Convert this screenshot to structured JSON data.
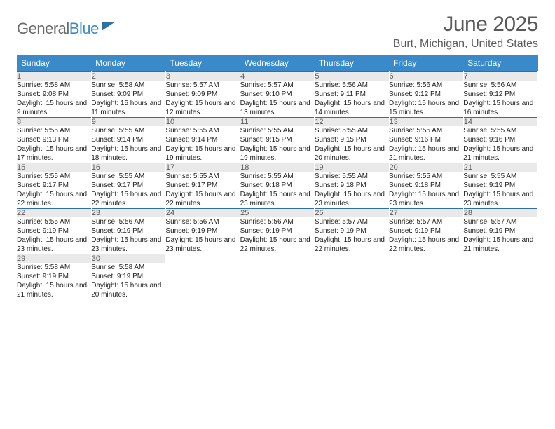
{
  "brand": {
    "word1": "General",
    "word2": "Blue"
  },
  "title": {
    "month": "June 2025",
    "location": "Burt, Michigan, United States"
  },
  "style": {
    "header_bg": "#3a8ac9",
    "header_fg": "#ffffff",
    "daynum_bg": "#e9e9e9",
    "daynum_fg": "#5a5a5a",
    "row_border": "#2d6fa8",
    "body_fg": "#222222",
    "month_fontsize": 30,
    "location_fontsize": 16,
    "header_fontsize": 12,
    "daynum_fontsize": 11,
    "cell_fontsize": 10
  },
  "weekdays": [
    "Sunday",
    "Monday",
    "Tuesday",
    "Wednesday",
    "Thursday",
    "Friday",
    "Saturday"
  ],
  "days": [
    {
      "n": "1",
      "sr": "5:58 AM",
      "ss": "9:08 PM",
      "dl": "15 hours and 9 minutes."
    },
    {
      "n": "2",
      "sr": "5:58 AM",
      "ss": "9:09 PM",
      "dl": "15 hours and 11 minutes."
    },
    {
      "n": "3",
      "sr": "5:57 AM",
      "ss": "9:09 PM",
      "dl": "15 hours and 12 minutes."
    },
    {
      "n": "4",
      "sr": "5:57 AM",
      "ss": "9:10 PM",
      "dl": "15 hours and 13 minutes."
    },
    {
      "n": "5",
      "sr": "5:56 AM",
      "ss": "9:11 PM",
      "dl": "15 hours and 14 minutes."
    },
    {
      "n": "6",
      "sr": "5:56 AM",
      "ss": "9:12 PM",
      "dl": "15 hours and 15 minutes."
    },
    {
      "n": "7",
      "sr": "5:56 AM",
      "ss": "9:12 PM",
      "dl": "15 hours and 16 minutes."
    },
    {
      "n": "8",
      "sr": "5:55 AM",
      "ss": "9:13 PM",
      "dl": "15 hours and 17 minutes."
    },
    {
      "n": "9",
      "sr": "5:55 AM",
      "ss": "9:14 PM",
      "dl": "15 hours and 18 minutes."
    },
    {
      "n": "10",
      "sr": "5:55 AM",
      "ss": "9:14 PM",
      "dl": "15 hours and 19 minutes."
    },
    {
      "n": "11",
      "sr": "5:55 AM",
      "ss": "9:15 PM",
      "dl": "15 hours and 19 minutes."
    },
    {
      "n": "12",
      "sr": "5:55 AM",
      "ss": "9:15 PM",
      "dl": "15 hours and 20 minutes."
    },
    {
      "n": "13",
      "sr": "5:55 AM",
      "ss": "9:16 PM",
      "dl": "15 hours and 21 minutes."
    },
    {
      "n": "14",
      "sr": "5:55 AM",
      "ss": "9:16 PM",
      "dl": "15 hours and 21 minutes."
    },
    {
      "n": "15",
      "sr": "5:55 AM",
      "ss": "9:17 PM",
      "dl": "15 hours and 22 minutes."
    },
    {
      "n": "16",
      "sr": "5:55 AM",
      "ss": "9:17 PM",
      "dl": "15 hours and 22 minutes."
    },
    {
      "n": "17",
      "sr": "5:55 AM",
      "ss": "9:17 PM",
      "dl": "15 hours and 22 minutes."
    },
    {
      "n": "18",
      "sr": "5:55 AM",
      "ss": "9:18 PM",
      "dl": "15 hours and 23 minutes."
    },
    {
      "n": "19",
      "sr": "5:55 AM",
      "ss": "9:18 PM",
      "dl": "15 hours and 23 minutes."
    },
    {
      "n": "20",
      "sr": "5:55 AM",
      "ss": "9:18 PM",
      "dl": "15 hours and 23 minutes."
    },
    {
      "n": "21",
      "sr": "5:55 AM",
      "ss": "9:19 PM",
      "dl": "15 hours and 23 minutes."
    },
    {
      "n": "22",
      "sr": "5:55 AM",
      "ss": "9:19 PM",
      "dl": "15 hours and 23 minutes."
    },
    {
      "n": "23",
      "sr": "5:56 AM",
      "ss": "9:19 PM",
      "dl": "15 hours and 23 minutes."
    },
    {
      "n": "24",
      "sr": "5:56 AM",
      "ss": "9:19 PM",
      "dl": "15 hours and 23 minutes."
    },
    {
      "n": "25",
      "sr": "5:56 AM",
      "ss": "9:19 PM",
      "dl": "15 hours and 22 minutes."
    },
    {
      "n": "26",
      "sr": "5:57 AM",
      "ss": "9:19 PM",
      "dl": "15 hours and 22 minutes."
    },
    {
      "n": "27",
      "sr": "5:57 AM",
      "ss": "9:19 PM",
      "dl": "15 hours and 22 minutes."
    },
    {
      "n": "28",
      "sr": "5:57 AM",
      "ss": "9:19 PM",
      "dl": "15 hours and 21 minutes."
    },
    {
      "n": "29",
      "sr": "5:58 AM",
      "ss": "9:19 PM",
      "dl": "15 hours and 21 minutes."
    },
    {
      "n": "30",
      "sr": "5:58 AM",
      "ss": "9:19 PM",
      "dl": "15 hours and 20 minutes."
    }
  ],
  "labels": {
    "sunrise": "Sunrise:",
    "sunset": "Sunset:",
    "daylight": "Daylight:"
  }
}
